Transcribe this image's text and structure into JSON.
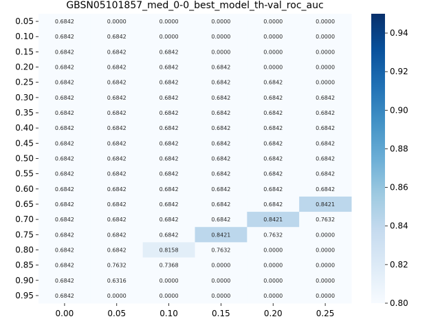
{
  "chart_data": {
    "type": "heatmap",
    "title": "GBSN05101857_med_0-0_best_model_th-val_roc_auc",
    "x_categories": [
      "0.00",
      "0.05",
      "0.10",
      "0.15",
      "0.20",
      "0.25"
    ],
    "y_categories": [
      "0.05",
      "0.10",
      "0.15",
      "0.20",
      "0.25",
      "0.30",
      "0.35",
      "0.40",
      "0.45",
      "0.50",
      "0.55",
      "0.60",
      "0.65",
      "0.70",
      "0.75",
      "0.80",
      "0.85",
      "0.90",
      "0.95"
    ],
    "values": [
      [
        "0.6842",
        "0.0000",
        "0.0000",
        "0.0000",
        "0.0000",
        "0.0000"
      ],
      [
        "0.6842",
        "0.6842",
        "0.0000",
        "0.0000",
        "0.0000",
        "0.0000"
      ],
      [
        "0.6842",
        "0.6842",
        "0.6842",
        "0.0000",
        "0.0000",
        "0.0000"
      ],
      [
        "0.6842",
        "0.6842",
        "0.6842",
        "0.6842",
        "0.0000",
        "0.0000"
      ],
      [
        "0.6842",
        "0.6842",
        "0.6842",
        "0.6842",
        "0.6842",
        "0.0000"
      ],
      [
        "0.6842",
        "0.6842",
        "0.6842",
        "0.6842",
        "0.6842",
        "0.6842"
      ],
      [
        "0.6842",
        "0.6842",
        "0.6842",
        "0.6842",
        "0.6842",
        "0.6842"
      ],
      [
        "0.6842",
        "0.6842",
        "0.6842",
        "0.6842",
        "0.6842",
        "0.6842"
      ],
      [
        "0.6842",
        "0.6842",
        "0.6842",
        "0.6842",
        "0.6842",
        "0.6842"
      ],
      [
        "0.6842",
        "0.6842",
        "0.6842",
        "0.6842",
        "0.6842",
        "0.6842"
      ],
      [
        "0.6842",
        "0.6842",
        "0.6842",
        "0.6842",
        "0.6842",
        "0.6842"
      ],
      [
        "0.6842",
        "0.6842",
        "0.6842",
        "0.6842",
        "0.6842",
        "0.6842"
      ],
      [
        "0.6842",
        "0.6842",
        "0.6842",
        "0.6842",
        "0.6842",
        "0.8421"
      ],
      [
        "0.6842",
        "0.6842",
        "0.6842",
        "0.6842",
        "0.8421",
        "0.7632"
      ],
      [
        "0.6842",
        "0.6842",
        "0.6842",
        "0.8421",
        "0.7632",
        "0.0000"
      ],
      [
        "0.6842",
        "0.6842",
        "0.8158",
        "0.7632",
        "0.0000",
        "0.0000"
      ],
      [
        "0.6842",
        "0.7632",
        "0.7368",
        "0.0000",
        "0.0000",
        "0.0000"
      ],
      [
        "0.6842",
        "0.6316",
        "0.0000",
        "0.0000",
        "0.0000",
        "0.0000"
      ],
      [
        "0.6842",
        "0.0000",
        "0.0000",
        "0.0000",
        "0.0000",
        "0.0000"
      ]
    ],
    "colorbar": {
      "range": [
        0.8,
        0.95
      ],
      "ticks": [
        "0.80",
        "0.82",
        "0.84",
        "0.86",
        "0.88",
        "0.90",
        "0.92",
        "0.94"
      ],
      "colormap": "Blues",
      "low_color": "#f7fbff",
      "high_color": "#08306b"
    },
    "grid": false,
    "legend": "colorbar-right"
  }
}
